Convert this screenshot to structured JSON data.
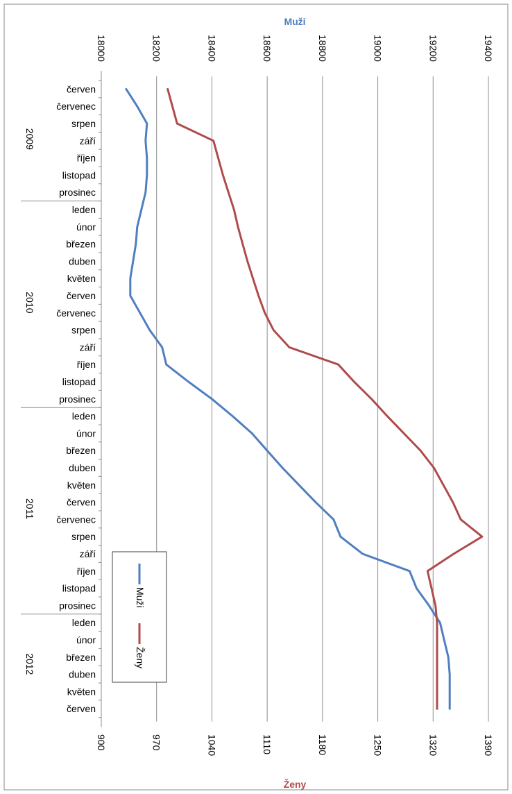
{
  "chart_data": {
    "type": "line",
    "orientation": "rotated-90-clockwise",
    "categories": [
      "červen",
      "červenec",
      "srpen",
      "září",
      "říjen",
      "listopad",
      "prosinec",
      "leden",
      "únor",
      "březen",
      "duben",
      "květen",
      "červen",
      "červenec",
      "srpen",
      "září",
      "říjen",
      "listopad",
      "prosinec",
      "leden",
      "únor",
      "březen",
      "duben",
      "květen",
      "červen",
      "červenec",
      "srpen",
      "září",
      "říjen",
      "listopad",
      "prosinec",
      "leden",
      "únor",
      "březen",
      "duben",
      "květen",
      "červen"
    ],
    "years": [
      {
        "label": "2009",
        "from": 0,
        "to": 6
      },
      {
        "label": "2010",
        "from": 7,
        "to": 18
      },
      {
        "label": "2011",
        "from": 19,
        "to": 30
      },
      {
        "label": "2012",
        "from": 31,
        "to": 36
      }
    ],
    "primary_axis": {
      "title": "Muži",
      "range": [
        18000,
        19400
      ],
      "ticks": [
        "18000",
        "18200",
        "18400",
        "18600",
        "18800",
        "19000",
        "19200",
        "19400"
      ],
      "position": "top"
    },
    "secondary_axis": {
      "title": "Ženy",
      "range": [
        900,
        1390
      ],
      "ticks": [
        "900",
        "970",
        "1040",
        "1110",
        "1180",
        "1250",
        "1320",
        "1390"
      ],
      "position": "bottom"
    },
    "grid": true,
    "legend": {
      "position": "bottom-left"
    },
    "series": [
      {
        "name": "Muži",
        "axis": "primary",
        "color": "#4f7ec1",
        "values": [
          18090,
          18130,
          18165,
          18160,
          18165,
          18165,
          18160,
          18145,
          18130,
          18125,
          18115,
          18105,
          18105,
          18140,
          18175,
          18220,
          18235,
          18315,
          18400,
          18475,
          18545,
          18600,
          18655,
          18715,
          18775,
          18840,
          18865,
          18945,
          19115,
          19140,
          19185,
          19225,
          19240,
          19255,
          19260,
          19260,
          19260
        ]
      },
      {
        "name": "Ženy",
        "axis": "secondary",
        "color": "#b04b4b",
        "values": [
          984,
          990,
          996,
          1042,
          1048,
          1054,
          1061,
          1068,
          1073,
          1079,
          1085,
          1092,
          1099,
          1107,
          1118,
          1138,
          1200,
          1220,
          1242,
          1262,
          1283,
          1304,
          1321,
          1333,
          1345,
          1355,
          1382,
          1346,
          1313,
          1318,
          1323,
          1325,
          1325,
          1325,
          1325,
          1325,
          1325
        ]
      }
    ]
  }
}
